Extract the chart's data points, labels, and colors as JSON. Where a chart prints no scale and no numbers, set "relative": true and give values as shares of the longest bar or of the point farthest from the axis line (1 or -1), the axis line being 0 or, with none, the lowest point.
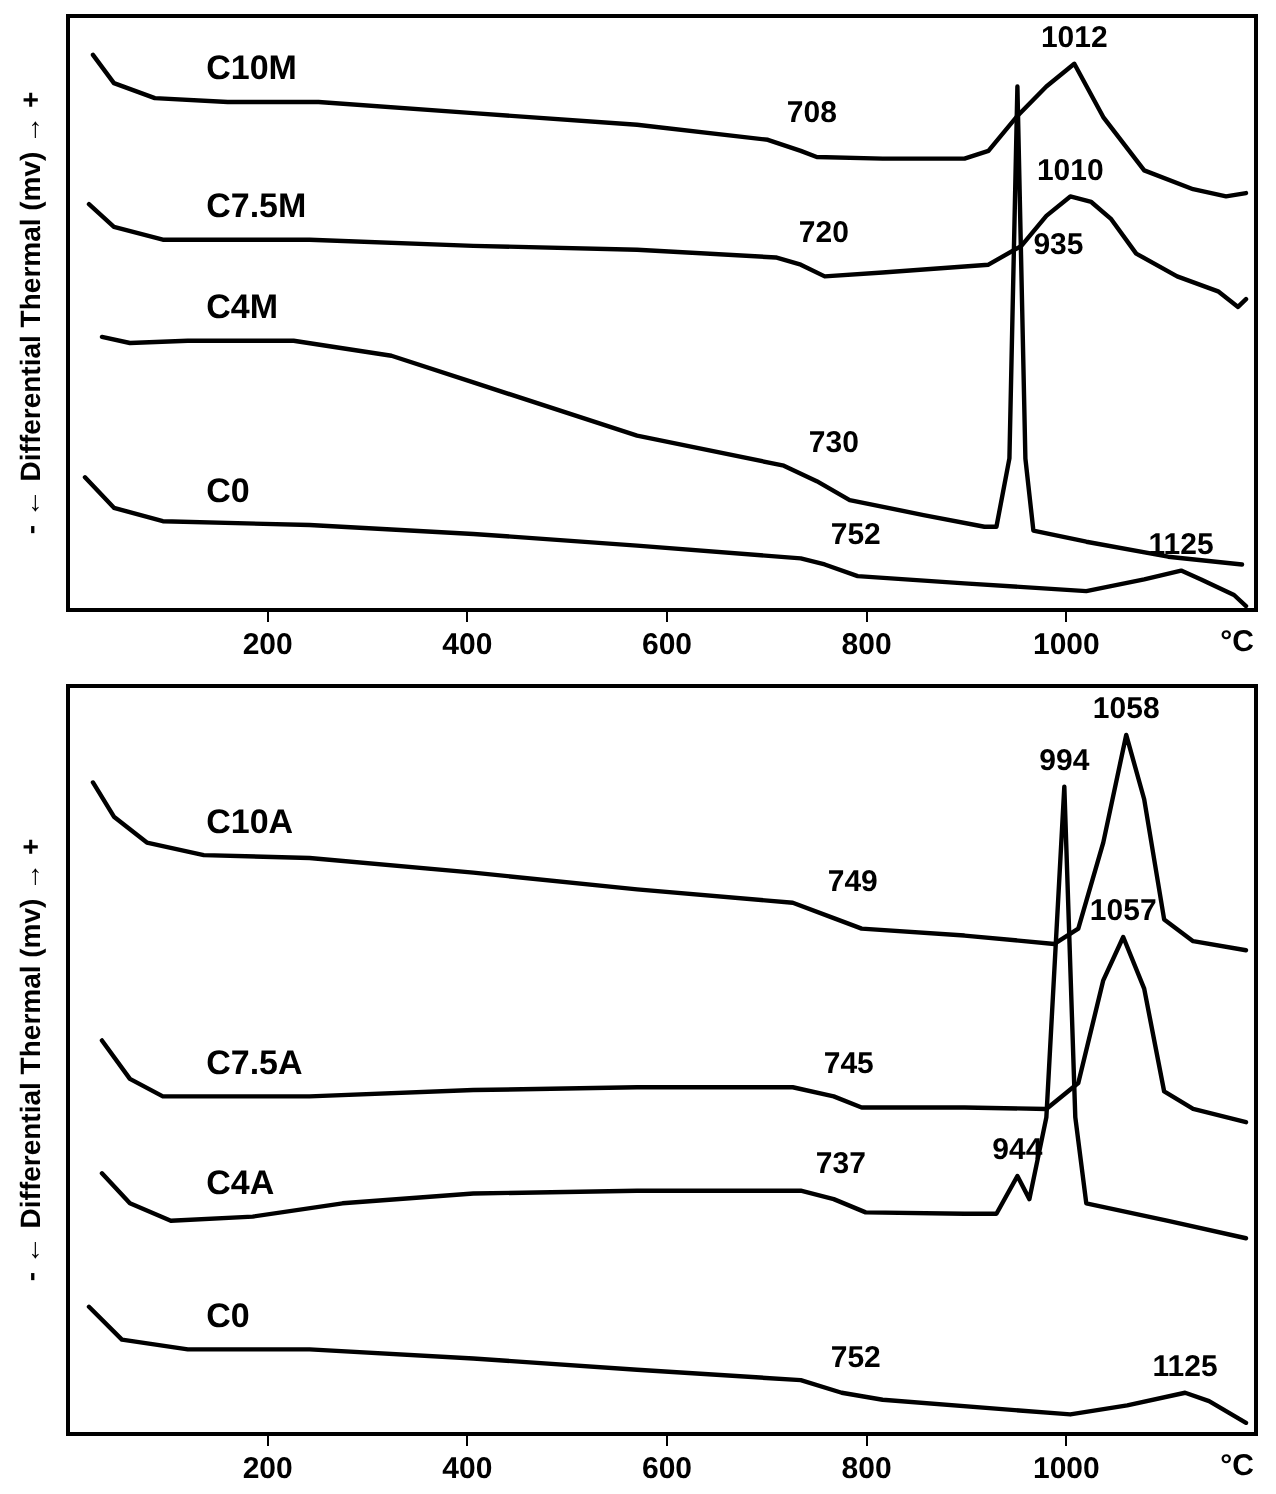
{
  "chart_data": [
    {
      "type": "line",
      "ylabel": "- ← Differential Thermal (mv) → +",
      "xlabel": "°C",
      "relative": true,
      "xlim": [
        0,
        1190
      ],
      "xticks": [
        200,
        400,
        600,
        800,
        1000
      ],
      "tick_labels": "x",
      "grid": false,
      "legend": false,
      "marker": "none",
      "line_style": "solid",
      "series": [
        {
          "name": "C10M",
          "color": "#000000",
          "x": [
            25,
            46,
            87,
            160,
            251,
            406,
            570,
            701,
            734,
            750,
            816,
            898,
            922,
            950,
            980,
            1008,
            1037,
            1078,
            1127,
            1160,
            1180
          ],
          "values": [
            1.0,
            0.949,
            0.922,
            0.915,
            0.915,
            0.895,
            0.874,
            0.847,
            0.827,
            0.816,
            0.813,
            0.813,
            0.827,
            0.888,
            0.943,
            0.984,
            0.888,
            0.792,
            0.758,
            0.745,
            0.751
          ]
        },
        {
          "name": "C7.5M",
          "color": "#000000",
          "x": [
            21,
            46,
            95,
            242,
            406,
            570,
            709,
            734,
            758,
            816,
            922,
            955,
            980,
            1004,
            1025,
            1045,
            1070,
            1111,
            1152,
            1172,
            1180
          ],
          "values": [
            0.731,
            0.69,
            0.667,
            0.667,
            0.656,
            0.649,
            0.635,
            0.622,
            0.601,
            0.608,
            0.622,
            0.656,
            0.71,
            0.745,
            0.735,
            0.704,
            0.642,
            0.601,
            0.574,
            0.546,
            0.56
          ]
        },
        {
          "name": "C4M",
          "color": "#000000",
          "x": [
            34,
            62,
            120,
            226,
            324,
            406,
            570,
            717,
            750,
            783,
            857,
            918,
            930,
            943,
            951,
            959,
            967,
            1020,
            1102,
            1176
          ],
          "values": [
            0.492,
            0.481,
            0.485,
            0.485,
            0.458,
            0.41,
            0.314,
            0.26,
            0.232,
            0.198,
            0.171,
            0.15,
            0.15,
            0.273,
            0.943,
            0.273,
            0.143,
            0.123,
            0.096,
            0.082
          ]
        },
        {
          "name": "C0",
          "color": "#000000",
          "x": [
            17,
            46,
            95,
            242,
            406,
            570,
            734,
            758,
            791,
            898,
            1020,
            1078,
            1115,
            1135,
            1168,
            1180
          ],
          "values": [
            0.239,
            0.184,
            0.16,
            0.153,
            0.137,
            0.116,
            0.093,
            0.082,
            0.061,
            0.048,
            0.034,
            0.055,
            0.071,
            0.055,
            0.027,
            0.007
          ]
        }
      ],
      "annotations": [
        {
          "text": "708",
          "x": 708,
          "y": 0.845
        },
        {
          "text": "1012",
          "x": 1008,
          "y": 0.984
        },
        {
          "text": "720",
          "x": 720,
          "y": 0.63
        },
        {
          "text": "1010",
          "x": 1004,
          "y": 0.745
        },
        {
          "text": "935",
          "x": 955,
          "y": 0.608
        },
        {
          "text": "730",
          "x": 730,
          "y": 0.25
        },
        {
          "text": "752",
          "x": 752,
          "y": 0.086
        },
        {
          "text": "1125",
          "x": 1115,
          "y": 0.071
        }
      ]
    },
    {
      "type": "line",
      "ylabel": "- ← Differential Thermal (mv) → +",
      "xlabel": "°C",
      "relative": true,
      "xlim": [
        0,
        1190
      ],
      "xticks": [
        200,
        400,
        600,
        800,
        1000
      ],
      "tick_labels": "x",
      "grid": false,
      "legend": false,
      "marker": "none",
      "line_style": "solid",
      "series": [
        {
          "name": "C10A",
          "color": "#000000",
          "x": [
            25,
            46,
            79,
            136,
            242,
            406,
            570,
            726,
            767,
            795,
            898,
            988,
            1012,
            1037,
            1060,
            1078,
            1098,
            1127,
            1180
          ],
          "values": [
            0.932,
            0.883,
            0.846,
            0.828,
            0.824,
            0.803,
            0.779,
            0.76,
            0.738,
            0.723,
            0.713,
            0.701,
            0.723,
            0.846,
            1.0,
            0.908,
            0.736,
            0.705,
            0.692
          ]
        },
        {
          "name": "C7.5A",
          "color": "#000000",
          "x": [
            34,
            62,
            95,
            242,
            406,
            570,
            726,
            767,
            795,
            898,
            980,
            1012,
            1037,
            1057,
            1078,
            1098,
            1127,
            1180
          ],
          "values": [
            0.563,
            0.508,
            0.483,
            0.483,
            0.492,
            0.496,
            0.496,
            0.483,
            0.467,
            0.467,
            0.465,
            0.502,
            0.649,
            0.711,
            0.637,
            0.49,
            0.465,
            0.446
          ]
        },
        {
          "name": "C4A",
          "color": "#000000",
          "x": [
            34,
            62,
            103,
            185,
            275,
            406,
            570,
            734,
            767,
            799,
            898,
            930,
            951,
            963,
            980,
            998,
            1009,
            1020,
            1102,
            1180
          ],
          "values": [
            0.373,
            0.33,
            0.305,
            0.311,
            0.33,
            0.344,
            0.348,
            0.348,
            0.336,
            0.317,
            0.315,
            0.315,
            0.369,
            0.336,
            0.453,
            0.926,
            0.453,
            0.33,
            0.305,
            0.28
          ]
        },
        {
          "name": "C0",
          "color": "#000000",
          "x": [
            21,
            54,
            120,
            242,
            406,
            570,
            734,
            775,
            816,
            1004,
            1061,
            1119,
            1143,
            1180
          ],
          "values": [
            0.182,
            0.135,
            0.121,
            0.121,
            0.108,
            0.092,
            0.077,
            0.059,
            0.049,
            0.028,
            0.041,
            0.059,
            0.047,
            0.016
          ]
        }
      ],
      "annotations": [
        {
          "text": "994",
          "x": 998,
          "y": 0.926
        },
        {
          "text": "1058",
          "x": 1060,
          "y": 1.0
        },
        {
          "text": "749",
          "x": 749,
          "y": 0.75
        },
        {
          "text": "1057",
          "x": 1057,
          "y": 0.711
        },
        {
          "text": "745",
          "x": 745,
          "y": 0.49
        },
        {
          "text": "944",
          "x": 951,
          "y": 0.369
        },
        {
          "text": "737",
          "x": 737,
          "y": 0.347
        },
        {
          "text": "752",
          "x": 752,
          "y": 0.069
        },
        {
          "text": "1125",
          "x": 1119,
          "y": 0.059
        }
      ]
    }
  ]
}
